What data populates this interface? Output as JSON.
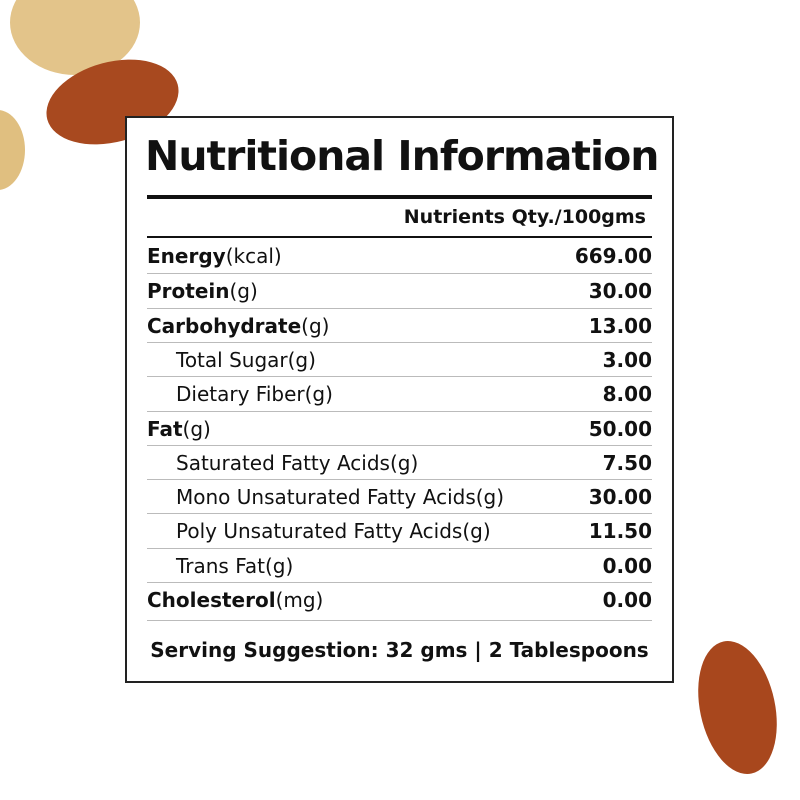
{
  "title": "Nutritional Information",
  "header": "Nutrients Qty./100gms",
  "rows": [
    {
      "name": "Energy",
      "unit": "(kcal)",
      "value": "669.00",
      "sub": false
    },
    {
      "name": "Protein",
      "unit": "(g)",
      "value": "30.00",
      "sub": false
    },
    {
      "name": "Carbohydrate",
      "unit": "(g)",
      "value": "13.00",
      "sub": false
    },
    {
      "name": "Total Sugar(g)",
      "unit": "",
      "value": "3.00",
      "sub": true
    },
    {
      "name": "Dietary Fiber(g)",
      "unit": "",
      "value": "8.00",
      "sub": true
    },
    {
      "name": "Fat",
      "unit": "(g)",
      "value": "50.00",
      "sub": false
    },
    {
      "name": "Saturated Fatty Acids(g)",
      "unit": "",
      "value": "7.50",
      "sub": true
    },
    {
      "name": "Mono Unsaturated Fatty Acids(g)",
      "unit": "",
      "value": "30.00",
      "sub": true
    },
    {
      "name": "Poly Unsaturated Fatty Acids(g)",
      "unit": "",
      "value": "11.50",
      "sub": true
    },
    {
      "name": "Trans Fat(g)",
      "unit": "",
      "value": "0.00",
      "sub": true
    },
    {
      "name": "Cholesterol",
      "unit": "(mg)",
      "value": "0.00",
      "sub": false
    }
  ],
  "serving": "Serving Suggestion: 32 gms | 2 Tablespoons"
}
